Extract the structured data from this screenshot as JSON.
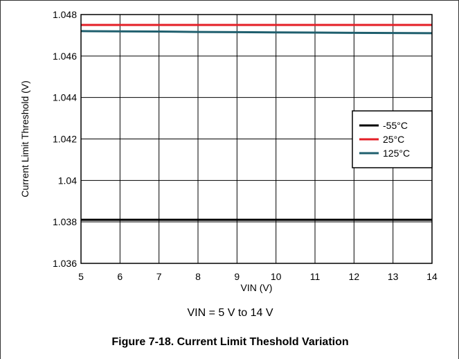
{
  "chart_data": {
    "type": "line",
    "title": "",
    "xlabel": "VIN (V)",
    "ylabel": "Current Limit Threshold (V)",
    "xlim": [
      5,
      14
    ],
    "ylim": [
      1.036,
      1.048
    ],
    "x_ticks": [
      5,
      6,
      7,
      8,
      9,
      10,
      11,
      12,
      13,
      14
    ],
    "x_tick_labels": [
      "5",
      "6",
      "7",
      "8",
      "9",
      "10",
      "11",
      "12",
      "13",
      "14"
    ],
    "y_ticks": [
      1.036,
      1.038,
      1.04,
      1.042,
      1.044,
      1.046,
      1.048
    ],
    "y_tick_labels": [
      "1.036",
      "1.038",
      "1.04",
      "1.042",
      "1.044",
      "1.046",
      "1.048"
    ],
    "grid": true,
    "legend_position": "right",
    "x": [
      5,
      6,
      7,
      8,
      9,
      10,
      11,
      12,
      13,
      14
    ],
    "series": [
      {
        "name": "-55°C",
        "color": "#000000",
        "values": [
          1.0381,
          1.0381,
          1.0381,
          1.0381,
          1.0381,
          1.0381,
          1.0381,
          1.0381,
          1.0381,
          1.0381
        ]
      },
      {
        "name": "25°C",
        "color": "#e41e26",
        "values": [
          1.0475,
          1.0475,
          1.0475,
          1.0475,
          1.0475,
          1.0475,
          1.0475,
          1.0475,
          1.0475,
          1.0475
        ]
      },
      {
        "name": "125°C",
        "color": "#1f5f6e",
        "values": [
          1.0472,
          1.04719,
          1.04718,
          1.04716,
          1.04715,
          1.04714,
          1.04713,
          1.04712,
          1.04711,
          1.0471
        ]
      }
    ]
  },
  "condition_text": "VIN = 5 V to 14 V",
  "caption": "Figure 7-18. Current Limit Theshold Variation"
}
